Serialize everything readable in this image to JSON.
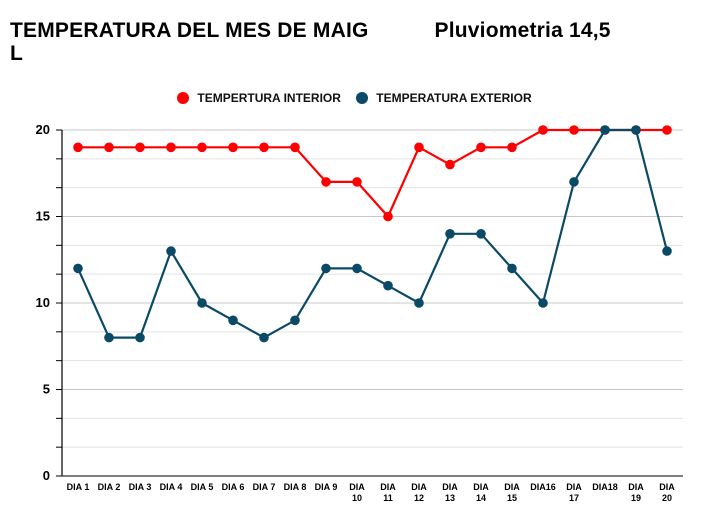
{
  "chart_data": {
    "type": "line",
    "title": "TEMPERATURA DEL MES DE MAIG",
    "subtitle": "Pluviometria 14,5 L",
    "title_parts": {
      "left": "TEMPERATURA DEL MES DE MAIG",
      "right": "Pluviometria 14,5",
      "wrap": "L"
    },
    "xlabel": "",
    "ylabel": "",
    "ylim": [
      0,
      20
    ],
    "yticks": [
      0,
      5,
      10,
      15,
      20
    ],
    "minor_ticks_per_major": 3,
    "grid": true,
    "legend_position": "top",
    "categories": [
      [
        "DIA 1"
      ],
      [
        "DIA 2"
      ],
      [
        "DIA 3"
      ],
      [
        "DIA 4"
      ],
      [
        "DIA 5"
      ],
      [
        "DIA 6"
      ],
      [
        "DIA 7"
      ],
      [
        "DIA 8"
      ],
      [
        "DIA 9"
      ],
      [
        "DIA",
        "10"
      ],
      [
        "DIA",
        "11"
      ],
      [
        "DIA",
        "12"
      ],
      [
        "DIA",
        "13"
      ],
      [
        "DIA",
        "14"
      ],
      [
        "DIA",
        "15"
      ],
      [
        "DIA16"
      ],
      [
        "DIA",
        "17"
      ],
      [
        "DIA18"
      ],
      [
        "DIA",
        "19"
      ],
      [
        "DIA",
        "20"
      ]
    ],
    "series": [
      {
        "name": "TEMPERTURA INTERIOR",
        "color": "#FF0000",
        "values": [
          19,
          19,
          19,
          19,
          19,
          19,
          19,
          19,
          17,
          17,
          15,
          19,
          18,
          19,
          19,
          20,
          20,
          20,
          20,
          20
        ]
      },
      {
        "name": "TEMPERATURA EXTERIOR",
        "color": "#0B4A66",
        "values": [
          12,
          8,
          8,
          13,
          10,
          9,
          8,
          9,
          12,
          12,
          11,
          10,
          14,
          14,
          12,
          10,
          17,
          20,
          20,
          13
        ]
      }
    ]
  }
}
